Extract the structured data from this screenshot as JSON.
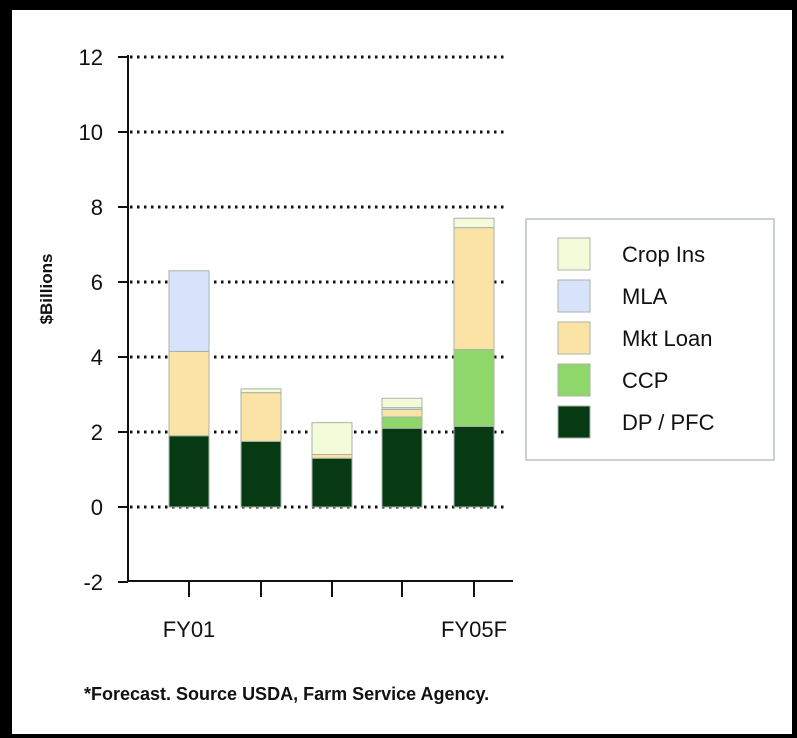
{
  "chart_data": {
    "type": "bar",
    "stacked": true,
    "ylabel": "$Billions",
    "ylim": [
      -2,
      12
    ],
    "yticks": [
      12,
      10,
      8,
      6,
      4,
      2,
      0,
      -2
    ],
    "grid": "dotted horizontal",
    "categories": [
      "FY01",
      "",
      "",
      "",
      "FY05F"
    ],
    "series": [
      {
        "name": "DP / PFC",
        "color": "#073a12",
        "values": [
          1.9,
          1.75,
          1.3,
          2.1,
          2.15
        ]
      },
      {
        "name": "CCP",
        "color": "#8fd76a",
        "values": [
          0,
          0,
          0,
          0.3,
          2.05
        ]
      },
      {
        "name": "Mkt Loan",
        "color": "#fbe3a6",
        "values": [
          2.25,
          1.3,
          0.1,
          0.2,
          3.25
        ]
      },
      {
        "name": "MLA",
        "color": "#d7e3fb",
        "values": [
          2.15,
          0,
          0,
          0.05,
          0
        ]
      },
      {
        "name": "Crop Ins",
        "color": "#f4fbd8",
        "values": [
          0,
          0.1,
          0.85,
          0.25,
          0.25
        ]
      }
    ],
    "legend": {
      "placement": "right",
      "order": [
        "Crop Ins",
        "MLA",
        "Mkt Loan",
        "CCP",
        "DP / PFC"
      ]
    },
    "footnote": "*Forecast. Source USDA, Farm Service Agency."
  }
}
